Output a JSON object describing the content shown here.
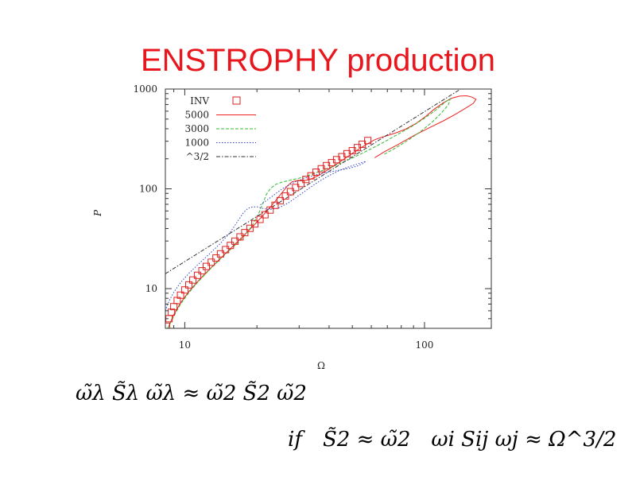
{
  "slide": {
    "title": "ENSTROPHY production",
    "equation_line1": "ω̃λ S̃λ ω̃λ ≈ ω̃2 S̃2 ω̃2",
    "equation_line2_if": "if",
    "equation_line2_cond": "S̃2 ≈ ω̃2",
    "equation_line2_result": "ωi Sij ωj ≈ Ω^3/2"
  },
  "chart_data": {
    "type": "line",
    "title": "",
    "xlabel": "Ω",
    "ylabel": "P",
    "xscale": "log",
    "yscale": "log",
    "xlim": [
      8.3,
      190
    ],
    "ylim": [
      4,
      1000
    ],
    "xticks": [
      10,
      100
    ],
    "xtick_labels": [
      "10",
      "100"
    ],
    "yticks": [
      10,
      100,
      1000
    ],
    "ytick_labels": [
      "10",
      "100",
      "1000"
    ],
    "legend_position": "top-left",
    "grid": false,
    "series": [
      {
        "name": "INV",
        "style": "markers",
        "marker": "square",
        "color": "#dd2222",
        "x": [
          8.4,
          8.6,
          8.8,
          9.0,
          9.3,
          9.6,
          10.0,
          10.4,
          10.8,
          11.3,
          11.8,
          12.3,
          12.9,
          13.5,
          14.1,
          14.8,
          15.5,
          16.2,
          17.0,
          17.8,
          18.7,
          19.6,
          20.6,
          21.6,
          22.7,
          23.8,
          25.0,
          26.3,
          27.6,
          29.0,
          30.5,
          32.0,
          33.6,
          35.3,
          37.1,
          39.0,
          41.0,
          43.0,
          45.2,
          47.5,
          50.0,
          52.5,
          55.0,
          58.0
        ],
        "y": [
          4.2,
          5.0,
          5.8,
          6.6,
          7.6,
          8.6,
          9.7,
          10.9,
          12.2,
          13.6,
          15.1,
          16.7,
          18.4,
          20.3,
          22.3,
          24.6,
          27.1,
          29.9,
          33.0,
          36.4,
          40.2,
          44.5,
          49.4,
          55.0,
          61.3,
          68.4,
          76.2,
          84.7,
          93.7,
          103,
          113,
          124,
          135,
          147,
          159,
          171,
          183,
          196,
          210,
          225,
          241,
          259,
          280,
          305
        ]
      },
      {
        "name": "5000",
        "style": "solid",
        "color": "#ee2222",
        "x": [
          8.5,
          9.0,
          9.6,
          10.4,
          11.4,
          12.6,
          14.0,
          15.6,
          17.4,
          19.4,
          21.5,
          23.5,
          25.3,
          26.8,
          28.1,
          29.5,
          31.2,
          33.2,
          35.5,
          38.2,
          41.3,
          44.6,
          48.0,
          51.5,
          55.0,
          58.5,
          62.0,
          66.0,
          71.0,
          77.0,
          84.0,
          92.0,
          101,
          110,
          120,
          130,
          140,
          150,
          158,
          164,
          160,
          148,
          135,
          120,
          105,
          90,
          78,
          68,
          62
        ],
        "y": [
          4.0,
          5.5,
          7.2,
          9.3,
          12.0,
          15.4,
          19.8,
          25.5,
          33.0,
          43.0,
          56.0,
          72.0,
          90.0,
          107,
          118,
          121,
          120,
          124,
          133,
          147,
          166,
          188,
          212,
          238,
          263,
          287,
          310,
          328,
          345,
          368,
          400,
          450,
          530,
          630,
          730,
          810,
          850,
          855,
          830,
          790,
          720,
          640,
          560,
          480,
          410,
          340,
          280,
          235,
          205
        ]
      },
      {
        "name": "3000",
        "style": "dashed",
        "color": "#33bb33",
        "x": [
          8.5,
          9.0,
          9.6,
          10.4,
          11.4,
          12.6,
          14.0,
          15.6,
          17.4,
          19.0,
          20.3,
          21.2,
          21.9,
          22.8,
          24.0,
          25.5,
          27.5,
          30.0,
          33.0,
          36.5,
          40.5,
          45.0,
          50.0,
          56.0,
          63.0,
          71.0,
          80.0,
          90.0,
          100,
          110,
          118,
          124,
          128,
          126,
          118,
          108,
          97,
          86,
          76,
          68
        ],
        "y": [
          4.0,
          5.3,
          7.0,
          9.1,
          11.8,
          15.2,
          19.6,
          25.0,
          32.0,
          42.0,
          56.0,
          72.0,
          88.0,
          101,
          111,
          117,
          122,
          128,
          137,
          149,
          164,
          182,
          204,
          232,
          268,
          313,
          368,
          432,
          510,
          600,
          690,
          760,
          800,
          700,
          580,
          470,
          380,
          310,
          258,
          222
        ]
      },
      {
        "name": "1000",
        "style": "dotted",
        "color": "#3344cc",
        "x": [
          8.3,
          8.6,
          9.0,
          9.6,
          10.4,
          11.4,
          12.6,
          14.0,
          15.4,
          16.6,
          17.6,
          18.4,
          19.2,
          20.1,
          21.0,
          22.5,
          24.5,
          27.0,
          30.0,
          33.5,
          37.0,
          41.0,
          45.0,
          49.0,
          52.0,
          55.0,
          57.0,
          55.0,
          52.0,
          48.0,
          43.0,
          38.0,
          33.0,
          29.0,
          25.5,
          22.5,
          20.5
        ],
        "y": [
          6.0,
          7.5,
          9.2,
          11.5,
          14.2,
          17.6,
          22.0,
          28.0,
          36.0,
          47.0,
          58.0,
          64.0,
          66.0,
          66.0,
          64.0,
          62.0,
          64.0,
          72.0,
          86.0,
          104,
          122,
          140,
          156,
          168,
          176,
          184,
          188,
          178,
          168,
          160,
          152,
          144,
          132,
          118,
          100,
          80,
          68
        ]
      },
      {
        "name": "^3/2",
        "style": "dashdot",
        "color": "#333333",
        "x": [
          8.3,
          190
        ],
        "y": [
          14.1,
          1557
        ]
      }
    ]
  }
}
